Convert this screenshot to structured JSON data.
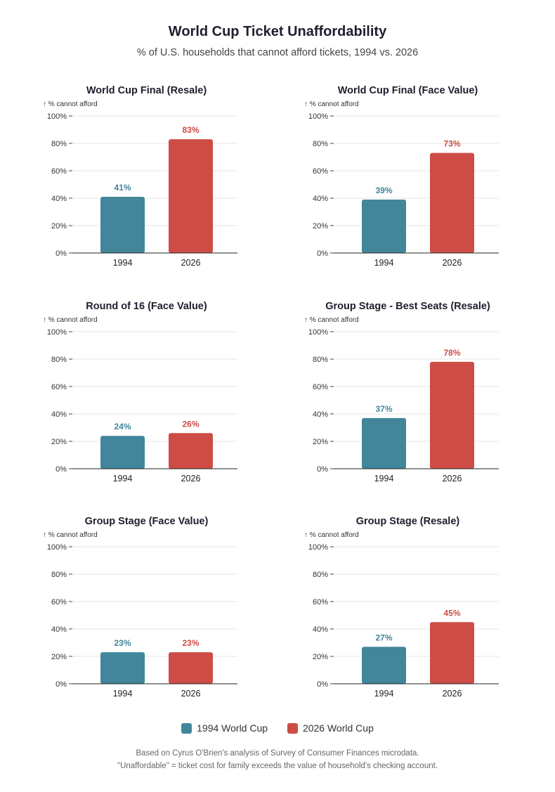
{
  "title": "World Cup Ticket Unaffordability",
  "subtitle": "% of U.S. households that cannot afford tickets, 1994 vs. 2026",
  "colors": {
    "1994": "#41869a",
    "2026": "#cd4d46"
  },
  "legend": [
    {
      "label": "1994 World Cup",
      "color": "#41869a"
    },
    {
      "label": "2026 World Cup",
      "color": "#cd4d46"
    }
  ],
  "footnote": {
    "line1": "Based on Cyrus O'Brien's analysis of Survey of Consumer Finances microdata.",
    "line2": "\"Unaffordable\" = ticket cost for family exceeds the value of household's checking account."
  },
  "chart_data": [
    {
      "type": "bar",
      "title": "World Cup Final (Resale)",
      "ylabel": "↑ % cannot afford",
      "categories": [
        "1994",
        "2026"
      ],
      "values": [
        41,
        83
      ],
      "value_labels": [
        "41%",
        "83%"
      ],
      "ylim": [
        0,
        100
      ],
      "yticks": [
        "0%",
        "20%",
        "40%",
        "60%",
        "80%",
        "100%"
      ],
      "grid": true
    },
    {
      "type": "bar",
      "title": "World Cup Final (Face Value)",
      "ylabel": "↑ % cannot afford",
      "categories": [
        "1994",
        "2026"
      ],
      "values": [
        39,
        73
      ],
      "value_labels": [
        "39%",
        "73%"
      ],
      "ylim": [
        0,
        100
      ],
      "yticks": [
        "0%",
        "20%",
        "40%",
        "60%",
        "80%",
        "100%"
      ],
      "grid": true
    },
    {
      "type": "bar",
      "title": "Round of 16 (Face Value)",
      "ylabel": "↑ % cannot afford",
      "categories": [
        "1994",
        "2026"
      ],
      "values": [
        24,
        26
      ],
      "value_labels": [
        "24%",
        "26%"
      ],
      "ylim": [
        0,
        100
      ],
      "yticks": [
        "0%",
        "20%",
        "40%",
        "60%",
        "80%",
        "100%"
      ],
      "grid": true
    },
    {
      "type": "bar",
      "title": "Group Stage - Best Seats (Resale)",
      "ylabel": "↑ % cannot afford",
      "categories": [
        "1994",
        "2026"
      ],
      "values": [
        37,
        78
      ],
      "value_labels": [
        "37%",
        "78%"
      ],
      "ylim": [
        0,
        100
      ],
      "yticks": [
        "0%",
        "20%",
        "40%",
        "60%",
        "80%",
        "100%"
      ],
      "grid": true
    },
    {
      "type": "bar",
      "title": "Group Stage (Face Value)",
      "ylabel": "↑ % cannot afford",
      "categories": [
        "1994",
        "2026"
      ],
      "values": [
        23,
        23
      ],
      "value_labels": [
        "23%",
        "23%"
      ],
      "ylim": [
        0,
        100
      ],
      "yticks": [
        "0%",
        "20%",
        "40%",
        "60%",
        "80%",
        "100%"
      ],
      "grid": true
    },
    {
      "type": "bar",
      "title": "Group Stage (Resale)",
      "ylabel": "↑ % cannot afford",
      "categories": [
        "1994",
        "2026"
      ],
      "values": [
        27,
        45
      ],
      "value_labels": [
        "27%",
        "45%"
      ],
      "ylim": [
        0,
        100
      ],
      "yticks": [
        "0%",
        "20%",
        "40%",
        "60%",
        "80%",
        "100%"
      ],
      "grid": true
    }
  ]
}
